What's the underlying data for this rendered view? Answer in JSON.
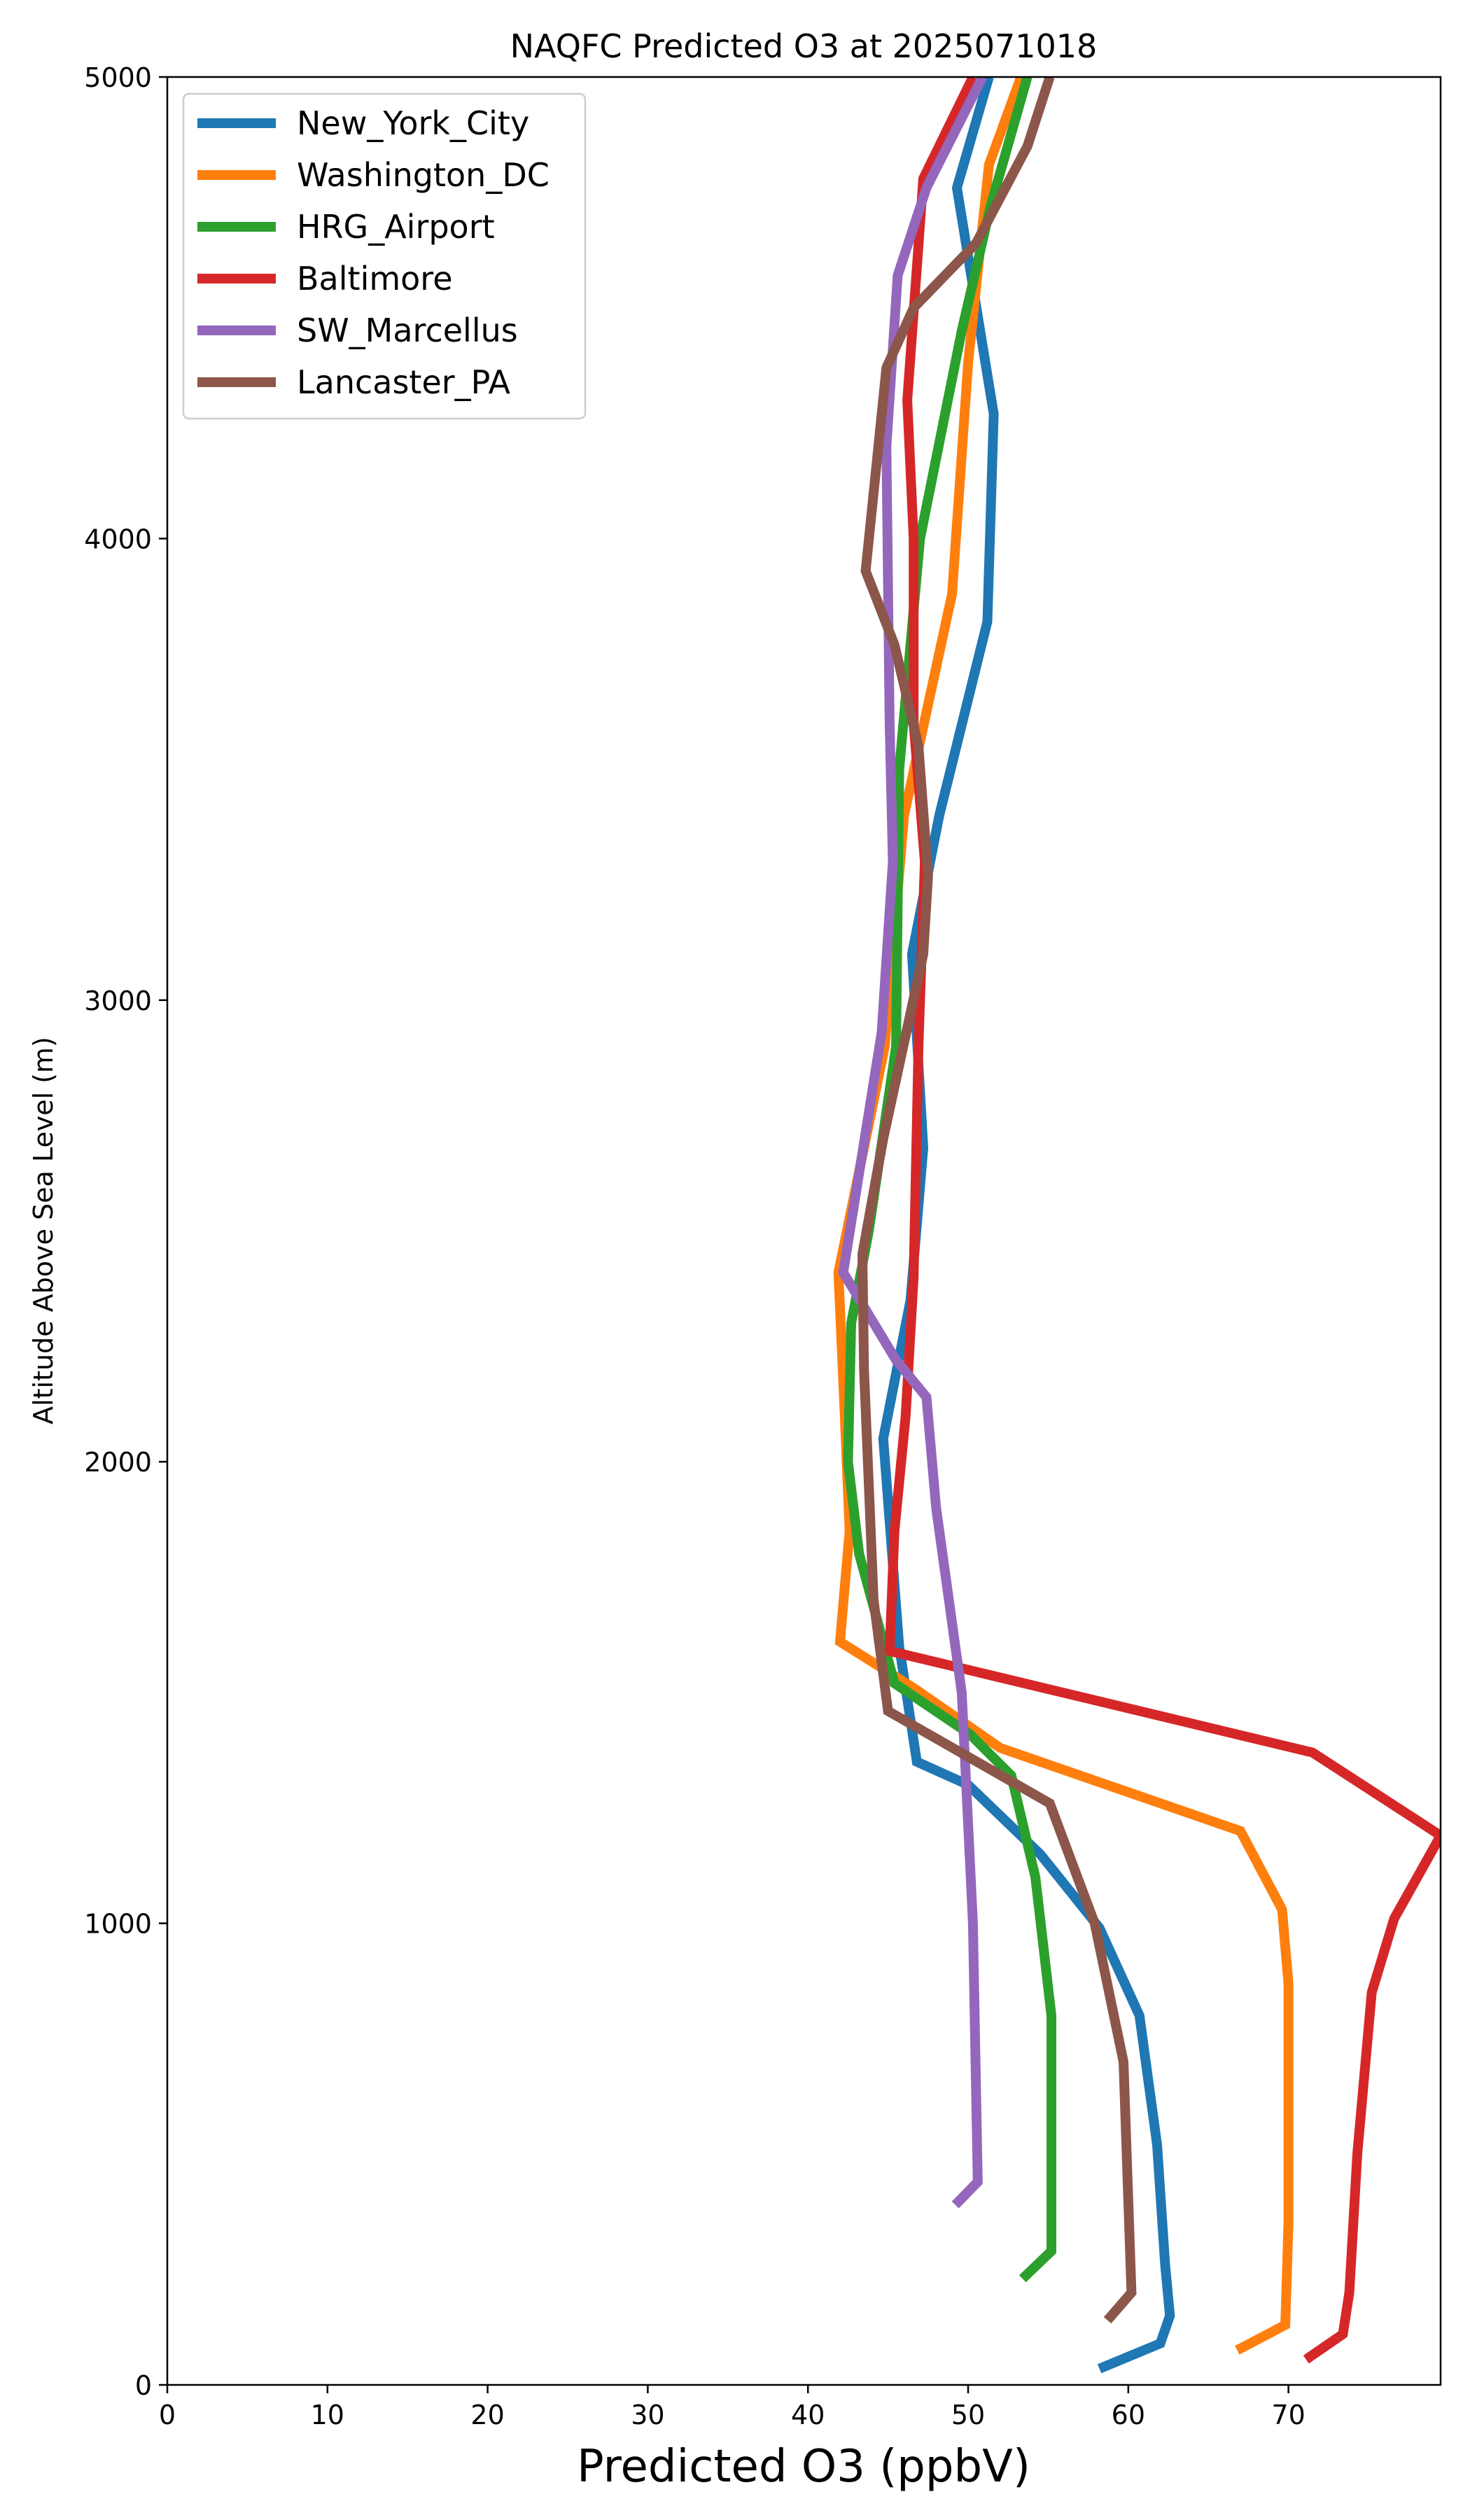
{
  "chart_data": {
    "type": "line",
    "title": "NAQFC Predicted O3 at 2025071018",
    "xlabel": "Predicted O3 (ppbV)",
    "ylabel": "Altitude Above Sea Level (m)",
    "xlim": [
      0,
      79.5
    ],
    "ylim": [
      0,
      5000
    ],
    "xticks": [
      "0",
      "10",
      "20",
      "30",
      "40",
      "50",
      "60",
      "70"
    ],
    "yticks": [
      "0",
      "1000",
      "2000",
      "3000",
      "4000",
      "5000"
    ],
    "legend_position": "upper-left",
    "grid": false,
    "series": [
      {
        "name": "New_York_City",
        "color": "#1f77b4",
        "points": [
          [
            58.2,
            35
          ],
          [
            62.0,
            90
          ],
          [
            62.6,
            150
          ],
          [
            62.3,
            260
          ],
          [
            61.8,
            520
          ],
          [
            60.7,
            800
          ],
          [
            58.2,
            990
          ],
          [
            54.5,
            1150
          ],
          [
            50.0,
            1300
          ],
          [
            46.8,
            1350
          ],
          [
            45.7,
            1600
          ],
          [
            44.7,
            2050
          ],
          [
            46.4,
            2350
          ],
          [
            47.2,
            2680
          ],
          [
            46.5,
            3100
          ],
          [
            48.2,
            3400
          ],
          [
            51.2,
            3820
          ],
          [
            51.6,
            4270
          ],
          [
            49.3,
            4760
          ],
          [
            51.3,
            5000
          ]
        ]
      },
      {
        "name": "Washington_DC",
        "color": "#ff7f0e",
        "points": [
          [
            66.8,
            75
          ],
          [
            69.8,
            130
          ],
          [
            70.0,
            350
          ],
          [
            70.0,
            870
          ],
          [
            69.6,
            1030
          ],
          [
            67.0,
            1200
          ],
          [
            52.0,
            1380
          ],
          [
            46.6,
            1510
          ],
          [
            42.0,
            1610
          ],
          [
            42.6,
            1850
          ],
          [
            42.3,
            2100
          ],
          [
            41.9,
            2410
          ],
          [
            44.8,
            2900
          ],
          [
            46.0,
            3400
          ],
          [
            49.0,
            3880
          ],
          [
            50.0,
            4380
          ],
          [
            51.3,
            4810
          ],
          [
            53.3,
            5000
          ]
        ]
      },
      {
        "name": "HRG_Airport",
        "color": "#2ca02c",
        "points": [
          [
            53.4,
            230
          ],
          [
            55.2,
            290
          ],
          [
            55.2,
            800
          ],
          [
            54.2,
            1100
          ],
          [
            52.7,
            1320
          ],
          [
            50.1,
            1410
          ],
          [
            45.4,
            1520
          ],
          [
            43.2,
            1800
          ],
          [
            42.5,
            2000
          ],
          [
            42.7,
            2300
          ],
          [
            43.8,
            2500
          ],
          [
            45.5,
            2900
          ],
          [
            45.7,
            3500
          ],
          [
            47.0,
            4000
          ],
          [
            49.6,
            4450
          ],
          [
            51.4,
            4720
          ],
          [
            53.7,
            5000
          ]
        ]
      },
      {
        "name": "Baltimore",
        "color": "#d62728",
        "points": [
          [
            71.1,
            55
          ],
          [
            73.4,
            110
          ],
          [
            73.8,
            200
          ],
          [
            74.3,
            500
          ],
          [
            75.2,
            850
          ],
          [
            76.6,
            1010
          ],
          [
            79.5,
            1190
          ],
          [
            71.5,
            1370
          ],
          [
            45.1,
            1590
          ],
          [
            45.4,
            1850
          ],
          [
            46.1,
            2100
          ],
          [
            46.6,
            2400
          ],
          [
            46.9,
            2900
          ],
          [
            47.3,
            3300
          ],
          [
            46.6,
            3600
          ],
          [
            46.6,
            4000
          ],
          [
            46.2,
            4300
          ],
          [
            47.2,
            4780
          ],
          [
            50.3,
            5000
          ]
        ]
      },
      {
        "name": "SW_Marcellus",
        "color": "#9467bd",
        "points": [
          [
            49.2,
            390
          ],
          [
            50.6,
            440
          ],
          [
            50.3,
            1000
          ],
          [
            49.6,
            1500
          ],
          [
            48.0,
            1900
          ],
          [
            47.4,
            2140
          ],
          [
            45.5,
            2220
          ],
          [
            42.2,
            2410
          ],
          [
            44.6,
            2930
          ],
          [
            45.3,
            3300
          ],
          [
            45.1,
            3600
          ],
          [
            44.9,
            4200
          ],
          [
            45.6,
            4570
          ],
          [
            47.4,
            4760
          ],
          [
            50.9,
            5000
          ]
        ]
      },
      {
        "name": "Lancaster_PA",
        "color": "#8c564b",
        "points": [
          [
            58.7,
            140
          ],
          [
            60.2,
            200
          ],
          [
            59.7,
            700
          ],
          [
            57.9,
            1000
          ],
          [
            55.1,
            1260
          ],
          [
            45.0,
            1460
          ],
          [
            44.1,
            1700
          ],
          [
            43.5,
            2200
          ],
          [
            43.4,
            2450
          ],
          [
            44.7,
            2700
          ],
          [
            47.2,
            3100
          ],
          [
            47.5,
            3270
          ],
          [
            46.9,
            3550
          ],
          [
            45.4,
            3770
          ],
          [
            43.6,
            3930
          ],
          [
            44.9,
            4370
          ],
          [
            46.6,
            4500
          ],
          [
            50.5,
            4640
          ],
          [
            53.7,
            4850
          ],
          [
            55.1,
            5000
          ]
        ]
      }
    ]
  }
}
